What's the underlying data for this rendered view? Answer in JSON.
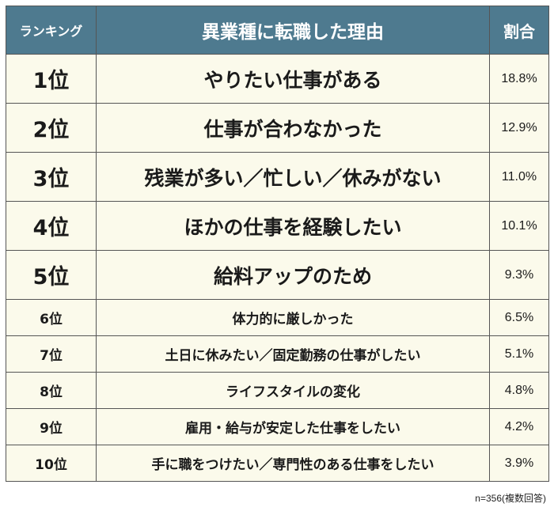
{
  "table": {
    "headers": {
      "rank": "ランキング",
      "reason": "異業種に転職した理由",
      "pct": "割合"
    }
  },
  "chart_data": {
    "type": "table",
    "rows": [
      {
        "rank": "1位",
        "reason": "やりたい仕事がある",
        "pct": "18.8%"
      },
      {
        "rank": "2位",
        "reason": "仕事が合わなかった",
        "pct": "12.9%"
      },
      {
        "rank": "3位",
        "reason": "残業が多い／忙しい／休みがない",
        "pct": "11.0%"
      },
      {
        "rank": "4位",
        "reason": "ほかの仕事を経験したい",
        "pct": "10.1%"
      },
      {
        "rank": "5位",
        "reason": "給料アップのため",
        "pct": "9.3%"
      },
      {
        "rank": "6位",
        "reason": "体力的に厳しかった",
        "pct": "6.5%"
      },
      {
        "rank": "7位",
        "reason": "土日に休みたい／固定勤務の仕事がしたい",
        "pct": "5.1%"
      },
      {
        "rank": "8位",
        "reason": "ライフスタイルの変化",
        "pct": "4.8%"
      },
      {
        "rank": "9位",
        "reason": "雇用・給与が安定した仕事をしたい",
        "pct": "4.2%"
      },
      {
        "rank": "10位",
        "reason": "手に職をつけたい／専門性のある仕事をしたい",
        "pct": "3.9%"
      }
    ],
    "values": [
      18.8,
      12.9,
      11.0,
      10.1,
      9.3,
      6.5,
      5.1,
      4.8,
      4.2,
      3.9
    ]
  },
  "footnote": "n=356(複数回答)"
}
